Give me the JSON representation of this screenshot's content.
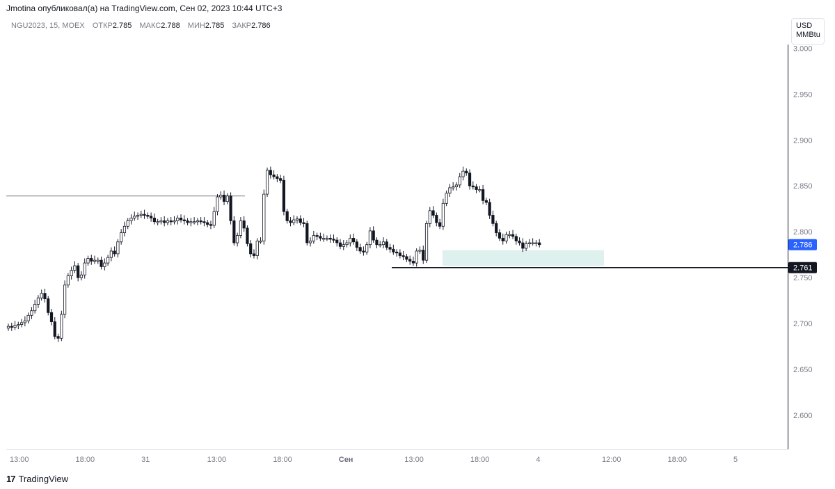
{
  "header": {
    "published_by": "Jmotina опубликовал(а) на TradingView.com, Сен 02, 2023 10:44 UTC+3"
  },
  "legend": {
    "symbol": "NGU2023, 15, MOEX",
    "open_label": "ОТКР",
    "open_value": "2.785",
    "high_label": "МАКС",
    "high_value": "2.788",
    "low_label": "МИН",
    "low_value": "2.785",
    "close_label": "ЗАКР",
    "close_value": "2.786"
  },
  "currency": {
    "line1": "USD",
    "line2": "MMBtu"
  },
  "footer": {
    "brand": "TradingView",
    "logo_glyph": "17"
  },
  "colors": {
    "up": "#ffffff",
    "down": "#131722",
    "wick": "#131722",
    "zone_fill": "#dff1ef",
    "last_price_badge": "#2962ff",
    "level_badge": "#131722",
    "axis_text": "#787b86",
    "resistance": "#787b86"
  },
  "chart_data": {
    "type": "candlestick",
    "y_ticks": [
      "3.000",
      "2.950",
      "2.900",
      "2.850",
      "2.800",
      "2.750",
      "2.700",
      "2.650",
      "2.600"
    ],
    "ylim": [
      2.563,
      3.004
    ],
    "x_labels": [
      {
        "label": "13:00",
        "bold": false
      },
      {
        "label": "18:00",
        "bold": false
      },
      {
        "label": "31",
        "bold": false
      },
      {
        "label": "13:00",
        "bold": false
      },
      {
        "label": "18:00",
        "bold": false
      },
      {
        "label": "Сен",
        "bold": true
      },
      {
        "label": "13:00",
        "bold": false
      },
      {
        "label": "18:00",
        "bold": false
      },
      {
        "label": "4",
        "bold": false
      },
      {
        "label": "12:00",
        "bold": false
      },
      {
        "label": "18:00",
        "bold": false
      },
      {
        "label": "5",
        "bold": false
      }
    ],
    "last_price": "2.786",
    "horizontal_level": "2.761",
    "resistance_level": 2.839,
    "demand_zone": {
      "top": 2.78,
      "bottom": 2.763
    },
    "closes": [
      2.697,
      2.696,
      2.698,
      2.699,
      2.701,
      2.703,
      2.709,
      2.714,
      2.721,
      2.728,
      2.733,
      2.727,
      2.712,
      2.702,
      2.686,
      2.684,
      2.71,
      2.742,
      2.752,
      2.758,
      2.763,
      2.75,
      2.753,
      2.766,
      2.771,
      2.768,
      2.769,
      2.769,
      2.762,
      2.766,
      2.772,
      2.779,
      2.776,
      2.789,
      2.799,
      2.806,
      2.812,
      2.815,
      2.817,
      2.818,
      2.819,
      2.818,
      2.817,
      2.815,
      2.811,
      2.811,
      2.812,
      2.81,
      2.812,
      2.811,
      2.812,
      2.815,
      2.813,
      2.812,
      2.81,
      2.811,
      2.811,
      2.812,
      2.811,
      2.81,
      2.808,
      2.807,
      2.822,
      2.838,
      2.84,
      2.833,
      2.839,
      2.812,
      2.788,
      2.796,
      2.812,
      2.804,
      2.787,
      2.776,
      2.774,
      2.79,
      2.79,
      2.841,
      2.867,
      2.862,
      2.86,
      2.858,
      2.856,
      2.822,
      2.812,
      2.81,
      2.813,
      2.814,
      2.81,
      2.809,
      2.788,
      2.79,
      2.796,
      2.795,
      2.793,
      2.793,
      2.793,
      2.792,
      2.791,
      2.788,
      2.784,
      2.786,
      2.788,
      2.793,
      2.789,
      2.783,
      2.779,
      2.778,
      2.786,
      2.801,
      2.791,
      2.786,
      2.786,
      2.789,
      2.783,
      2.781,
      2.778,
      2.777,
      2.774,
      2.773,
      2.77,
      2.768,
      2.766,
      2.779,
      2.78,
      2.769,
      2.809,
      2.823,
      2.818,
      2.81,
      2.806,
      2.831,
      2.842,
      2.848,
      2.849,
      2.851,
      2.86,
      2.866,
      2.864,
      2.85,
      2.849,
      2.846,
      2.846,
      2.834,
      2.832,
      2.818,
      2.809,
      2.799,
      2.793,
      2.79,
      2.797,
      2.797,
      2.795,
      2.79,
      2.788,
      2.782,
      2.787,
      2.788,
      2.788,
      2.788,
      2.786
    ]
  }
}
